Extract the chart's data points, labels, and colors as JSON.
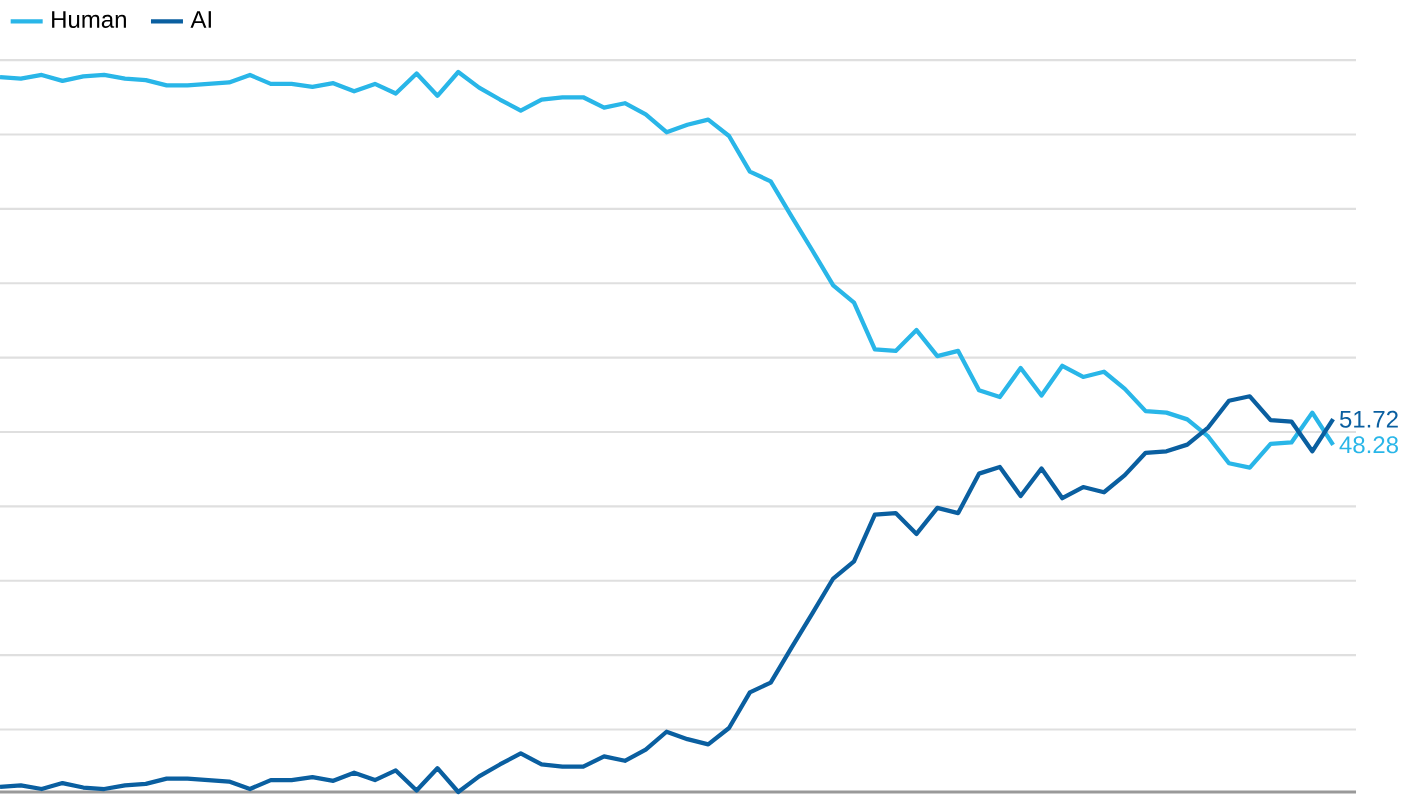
{
  "chart_data": {
    "type": "line",
    "categories": [
      null,
      null,
      null,
      null,
      null,
      null,
      null,
      null,
      null,
      null,
      null,
      null,
      null,
      null,
      null,
      null,
      null,
      null,
      null,
      null,
      null,
      null,
      null,
      null,
      null,
      null,
      null,
      null,
      null,
      null,
      null,
      null,
      null,
      null,
      null,
      null,
      null,
      null,
      null,
      null,
      null,
      null,
      null,
      null,
      null,
      null,
      null,
      null,
      null,
      null,
      null,
      null,
      null,
      null,
      null,
      null,
      null,
      null,
      null,
      null,
      null,
      null,
      null,
      null,
      null
    ],
    "series": [
      {
        "name": "Human",
        "color": "#29b6e8",
        "values": [
          97.7,
          97.5,
          98.0,
          97.2,
          97.8,
          98.0,
          97.5,
          97.3,
          96.6,
          96.6,
          96.8,
          97.0,
          98.0,
          96.8,
          96.8,
          96.4,
          96.9,
          95.8,
          96.8,
          95.5,
          98.2,
          95.2,
          98.4,
          96.3,
          94.7,
          93.2,
          94.7,
          95.0,
          95.0,
          93.6,
          94.2,
          92.7,
          90.3,
          91.3,
          92.0,
          89.8,
          85.0,
          83.7,
          79.0,
          74.4,
          69.7,
          67.4,
          61.1,
          60.9,
          63.7,
          60.2,
          60.9,
          55.6,
          54.7,
          58.6,
          54.9,
          58.9,
          57.4,
          58.1,
          55.8,
          52.8,
          52.6,
          51.7,
          49.4,
          45.8,
          45.2,
          48.4,
          48.6,
          52.6,
          48.28
        ],
        "value_labels": [
          null,
          null,
          null,
          null,
          null,
          null,
          null,
          null,
          null,
          null,
          null,
          null,
          null,
          null,
          null,
          null,
          null,
          null,
          null,
          null,
          null,
          null,
          null,
          null,
          null,
          null,
          null,
          null,
          null,
          null,
          null,
          null,
          null,
          null,
          null,
          null,
          null,
          null,
          null,
          null,
          null,
          null,
          null,
          null,
          null,
          null,
          null,
          null,
          null,
          null,
          null,
          null,
          null,
          null,
          null,
          null,
          null,
          null,
          null,
          null,
          null,
          null,
          null,
          null,
          "48.28"
        ]
      },
      {
        "name": "AI",
        "color": "#0a5fa0",
        "values": [
          2.3,
          2.5,
          2.0,
          2.8,
          2.2,
          2.0,
          2.5,
          2.7,
          3.4,
          3.4,
          3.2,
          3.0,
          2.0,
          3.2,
          3.2,
          3.6,
          3.1,
          4.2,
          3.2,
          4.5,
          1.8,
          4.8,
          1.6,
          3.7,
          5.3,
          6.8,
          5.3,
          5.0,
          5.0,
          6.4,
          5.8,
          7.3,
          9.7,
          8.7,
          8.0,
          10.2,
          15.0,
          16.3,
          21.0,
          25.6,
          30.3,
          32.6,
          38.9,
          39.1,
          36.3,
          39.8,
          39.1,
          44.4,
          45.3,
          41.4,
          45.1,
          41.1,
          42.6,
          41.9,
          44.2,
          47.2,
          47.4,
          48.3,
          50.6,
          54.2,
          54.8,
          51.6,
          51.4,
          47.4,
          51.72
        ],
        "value_labels": [
          null,
          null,
          null,
          null,
          null,
          null,
          null,
          null,
          null,
          null,
          null,
          null,
          null,
          null,
          null,
          null,
          null,
          null,
          null,
          null,
          null,
          null,
          null,
          null,
          null,
          null,
          null,
          null,
          null,
          null,
          null,
          null,
          null,
          null,
          null,
          null,
          null,
          null,
          null,
          null,
          null,
          null,
          null,
          null,
          null,
          null,
          null,
          null,
          null,
          null,
          null,
          null,
          null,
          null,
          null,
          null,
          null,
          null,
          null,
          null,
          null,
          null,
          null,
          null,
          "51.72"
        ]
      }
    ],
    "grid": "y",
    "legend": "top left"
  }
}
